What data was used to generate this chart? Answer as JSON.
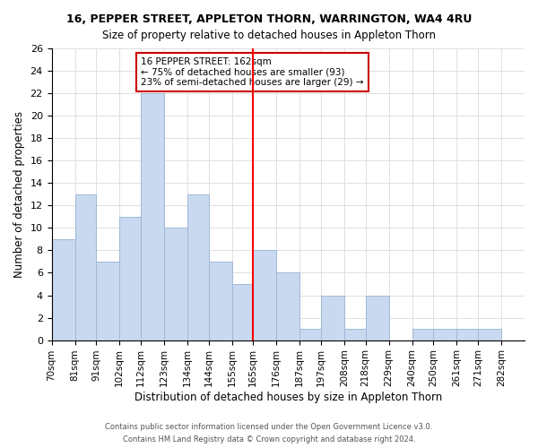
{
  "title1": "16, PEPPER STREET, APPLETON THORN, WARRINGTON, WA4 4RU",
  "title2": "Size of property relative to detached houses in Appleton Thorn",
  "xlabel": "Distribution of detached houses by size in Appleton Thorn",
  "ylabel": "Number of detached properties",
  "footer1": "Contains HM Land Registry data © Crown copyright and database right 2024.",
  "footer2": "Contains public sector information licensed under the Open Government Licence v3.0.",
  "bin_labels": [
    "70sqm",
    "81sqm",
    "91sqm",
    "102sqm",
    "112sqm",
    "123sqm",
    "134sqm",
    "144sqm",
    "155sqm",
    "165sqm",
    "176sqm",
    "187sqm",
    "197sqm",
    "208sqm",
    "218sqm",
    "229sqm",
    "240sqm",
    "250sqm",
    "261sqm",
    "271sqm",
    "282sqm"
  ],
  "bin_edges": [
    70,
    81,
    91,
    102,
    112,
    123,
    134,
    144,
    155,
    165,
    176,
    187,
    197,
    208,
    218,
    229,
    240,
    250,
    261,
    271,
    282
  ],
  "counts": [
    9,
    13,
    7,
    11,
    22,
    10,
    13,
    7,
    5,
    8,
    6,
    1,
    4,
    1,
    4,
    0,
    1,
    1,
    1,
    1
  ],
  "bar_color": "#c8d9f0",
  "bar_edge_color": "#a0b8d8",
  "vline_x": 165,
  "vline_color": "red",
  "annotation_text": "16 PEPPER STREET: 162sqm\n← 75% of detached houses are smaller (93)\n23% of semi-detached houses are larger (29) →",
  "annotation_box_color": "#ffffff",
  "annotation_box_edge": "#cc0000",
  "ylim": [
    0,
    26
  ],
  "yticks": [
    0,
    2,
    4,
    6,
    8,
    10,
    12,
    14,
    16,
    18,
    20,
    22,
    24,
    26
  ],
  "grid_color": "#e0e0e0"
}
